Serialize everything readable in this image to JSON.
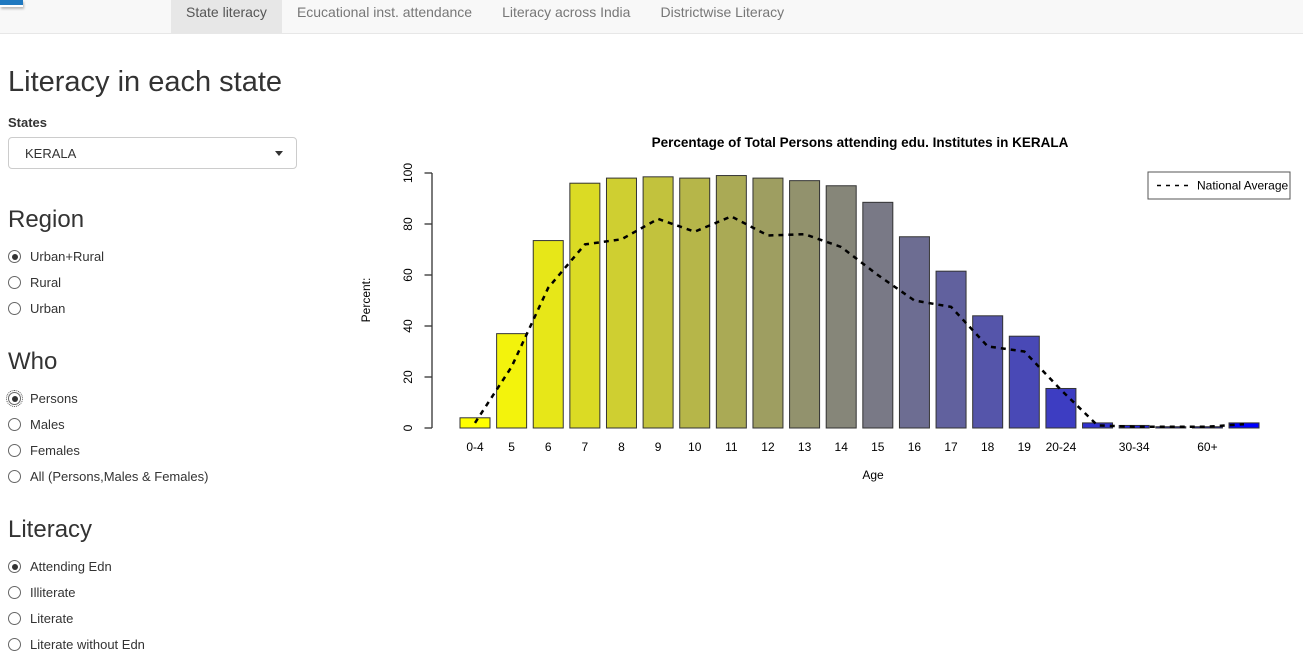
{
  "navbar": {
    "tabs": [
      {
        "label": "State literacy",
        "active": true
      },
      {
        "label": "Ecucational inst. attendance",
        "active": false
      },
      {
        "label": "Literacy across India",
        "active": false
      },
      {
        "label": "Districtwise Literacy",
        "active": false
      }
    ]
  },
  "sidebar": {
    "title": "Literacy in each state",
    "states_label": "States",
    "selected_state": "KERALA",
    "groups": [
      {
        "heading": "Region",
        "selected": 0,
        "focused": -1,
        "options": [
          "Urban+Rural",
          "Rural",
          "Urban"
        ]
      },
      {
        "heading": "Who",
        "selected": 0,
        "focused": 0,
        "options": [
          "Persons",
          "Males",
          "Females",
          "All (Persons,Males & Females)"
        ]
      },
      {
        "heading": "Literacy",
        "selected": 0,
        "focused": -1,
        "options": [
          "Attending Edn",
          "Illiterate",
          "Literate",
          "Literate without Edn"
        ]
      }
    ]
  },
  "chart_data": {
    "type": "bar",
    "title": "Percentage of Total Persons attending edu. Institutes in  KERALA",
    "xlabel": "Age",
    "ylabel": "Percent:",
    "ylim": [
      0,
      100
    ],
    "yticks": [
      0,
      20,
      40,
      60,
      80,
      100
    ],
    "grid": false,
    "x_tick_labels": [
      "0-4",
      "5",
      "6",
      "7",
      "8",
      "9",
      "10",
      "11",
      "12",
      "13",
      "14",
      "15",
      "16",
      "17",
      "18",
      "19",
      "20-24",
      "",
      "30-34",
      "",
      "60+",
      ""
    ],
    "series": [
      {
        "name": "KERALA",
        "type": "bar",
        "values": [
          4,
          37,
          73.5,
          96,
          98,
          98.5,
          98,
          99,
          98,
          97,
          95,
          88.5,
          75,
          61.5,
          44,
          36,
          15.5,
          2,
          1,
          0.5,
          0.5,
          2
        ],
        "bar_colors": [
          "#FFFF00",
          "#F3F30C",
          "#E7E718",
          "#DBDB24",
          "#CFCF31",
          "#C2C23D",
          "#B6B649",
          "#AAAA55",
          "#9E9E61",
          "#92926D",
          "#868679",
          "#797986",
          "#6D6D92",
          "#61619E",
          "#5555AA",
          "#4949B6",
          "#3D3DC2",
          "#3131CF",
          "#2424DB",
          "#1818E7",
          "#0C0CF3",
          "#0000FF"
        ],
        "bar_border_color": "#333333"
      },
      {
        "name": "National Average",
        "type": "line",
        "line_style": "dashed",
        "color": "#000000",
        "values": [
          2,
          24,
          55,
          72,
          74,
          82,
          77,
          83,
          75.5,
          76,
          71,
          60,
          50,
          47.5,
          32,
          30,
          15,
          1,
          0.5,
          0.5,
          0.5,
          1.5
        ]
      }
    ],
    "legend": {
      "label": "National Average",
      "position": "top-right"
    }
  }
}
